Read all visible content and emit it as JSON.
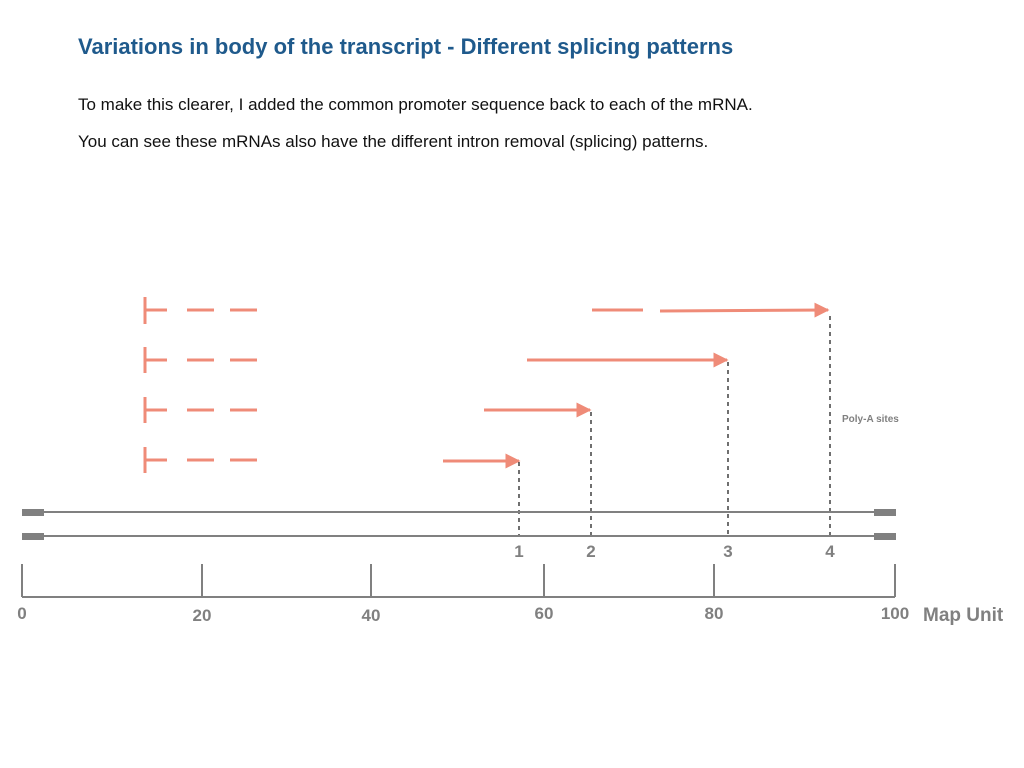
{
  "slide": {
    "title": "Variations in body of the transcript - Different splicing patterns",
    "lines": [
      "To make this clearer, I added the common promoter sequence back to each of the mRNA.",
      "You can see these mRNAs also have the different intron removal (splicing) patterns."
    ]
  },
  "diagram": {
    "polya_label": "Poly-A sites",
    "polya_sites": [
      "1",
      "2",
      "3",
      "4"
    ],
    "axis_ticks": [
      "0",
      "20",
      "40",
      "60",
      "80",
      "100"
    ],
    "axis_unit": "Map Unit",
    "colors": {
      "transcript": "#ef8b78",
      "gene": "#808080",
      "title": "#1f5a8c"
    }
  }
}
